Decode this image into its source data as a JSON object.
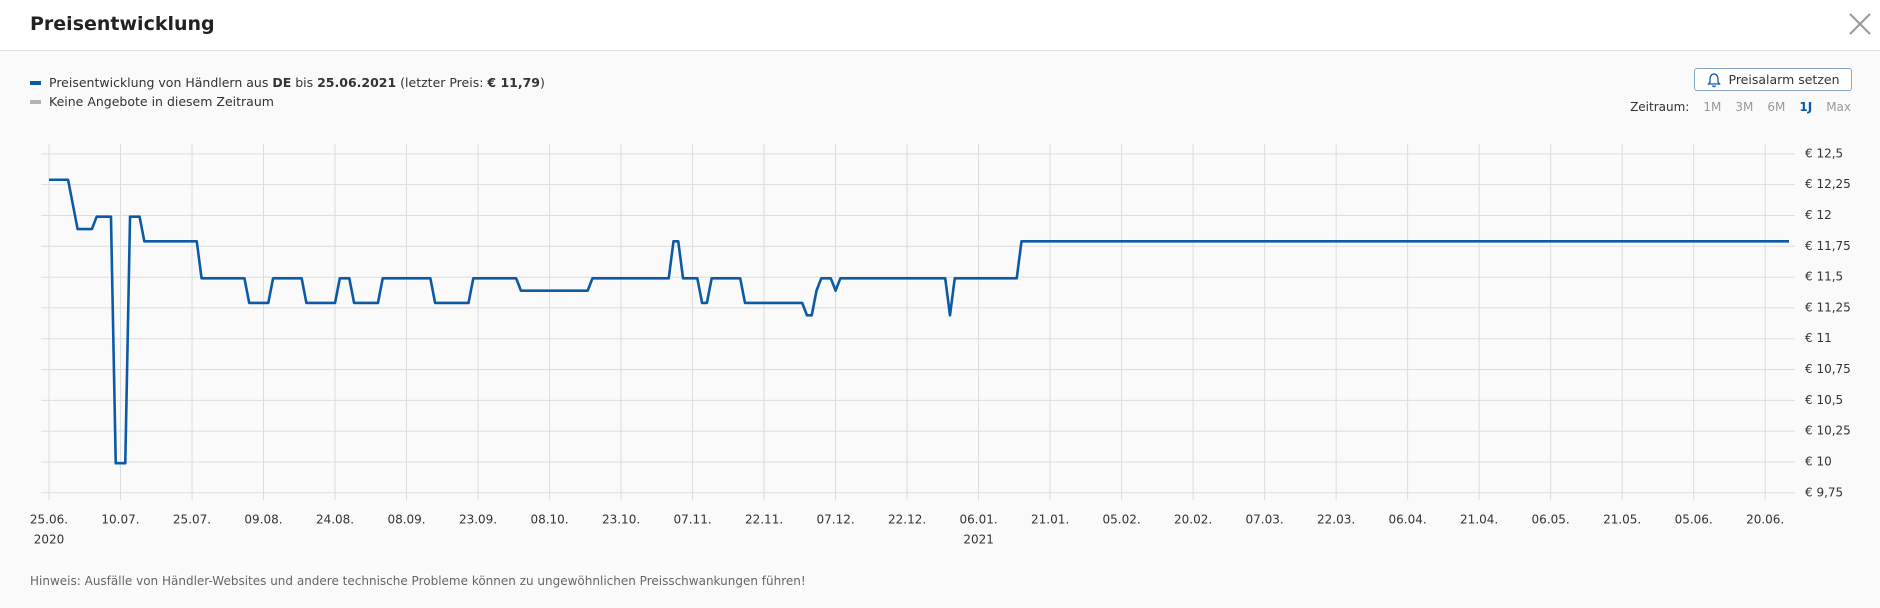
{
  "header": {
    "title": "Preisentwicklung"
  },
  "legend": [
    {
      "parts": [
        "Preisentwicklung von Händlern aus ",
        "DE",
        " bis ",
        "25.06.2021",
        " (letzter Preis: ",
        "€ 11,79",
        ")"
      ],
      "bold": [
        false,
        true,
        false,
        true,
        false,
        true,
        false
      ],
      "color": "#0c5aa6"
    },
    {
      "text": "Keine Angebote in diesem Zeitraum",
      "color": "#b3b3b3"
    }
  ],
  "alarm_button": {
    "label": "Preisalarm setzen"
  },
  "period": {
    "label": "Zeitraum:",
    "options": [
      "1M",
      "3M",
      "6M",
      "1J",
      "Max"
    ],
    "selected": 3
  },
  "chart_data": {
    "type": "line",
    "x": [
      "2020-06-25",
      "2020-06-29",
      "2020-07-01",
      "2020-07-04",
      "2020-07-05",
      "2020-07-08",
      "2020-07-09",
      "2020-07-11",
      "2020-07-12",
      "2020-07-14",
      "2020-07-15",
      "2020-07-26",
      "2020-07-27",
      "2020-08-05",
      "2020-08-06",
      "2020-08-10",
      "2020-08-11",
      "2020-08-17",
      "2020-08-18",
      "2020-08-24",
      "2020-08-25",
      "2020-08-27",
      "2020-08-28",
      "2020-09-02",
      "2020-09-03",
      "2020-09-13",
      "2020-09-14",
      "2020-09-21",
      "2020-09-22",
      "2020-10-01",
      "2020-10-02",
      "2020-10-16",
      "2020-10-17",
      "2020-11-02",
      "2020-11-03",
      "2020-11-04",
      "2020-11-05",
      "2020-11-08",
      "2020-11-09",
      "2020-11-10",
      "2020-11-11",
      "2020-11-17",
      "2020-11-18",
      "2020-11-30",
      "2020-12-01",
      "2020-12-02",
      "2020-12-03",
      "2020-12-04",
      "2020-12-06",
      "2020-12-07",
      "2020-12-08",
      "2020-12-30",
      "2020-12-31",
      "2021-01-01",
      "2021-01-14",
      "2021-01-15",
      "2021-06-25"
    ],
    "series": [
      {
        "color": "#0c5aa6",
        "values": [
          12.29,
          12.29,
          11.89,
          11.89,
          11.99,
          11.99,
          9.99,
          9.99,
          11.99,
          11.99,
          11.79,
          11.79,
          11.49,
          11.49,
          11.29,
          11.29,
          11.49,
          11.49,
          11.29,
          11.29,
          11.49,
          11.49,
          11.29,
          11.29,
          11.49,
          11.49,
          11.29,
          11.29,
          11.49,
          11.49,
          11.39,
          11.39,
          11.49,
          11.49,
          11.79,
          11.79,
          11.49,
          11.49,
          11.29,
          11.29,
          11.49,
          11.49,
          11.29,
          11.29,
          11.19,
          11.19,
          11.39,
          11.49,
          11.49,
          11.39,
          11.49,
          11.49,
          11.19,
          11.49,
          11.49,
          11.79,
          11.79
        ]
      }
    ],
    "xlim": [
      "2020-06-25",
      "2021-06-25"
    ],
    "ylim": [
      9.74,
      12.58
    ],
    "yticks": [
      {
        "value": 12.5,
        "label": "€ 12,5"
      },
      {
        "value": 12.25,
        "label": "€ 12,25"
      },
      {
        "value": 12,
        "label": "€ 12"
      },
      {
        "value": 11.75,
        "label": "€ 11,75"
      },
      {
        "value": 11.5,
        "label": "€ 11,5"
      },
      {
        "value": 11.25,
        "label": "€ 11,25"
      },
      {
        "value": 11,
        "label": "€ 11"
      },
      {
        "value": 10.75,
        "label": "€ 10,75"
      },
      {
        "value": 10.5,
        "label": "€ 10,5"
      },
      {
        "value": 10.25,
        "label": "€ 10,25"
      },
      {
        "value": 10,
        "label": "€ 10"
      },
      {
        "value": 9.75,
        "label": "€ 9,75"
      }
    ],
    "xticks": [
      {
        "value": "2020-06-25",
        "label": "25.06."
      },
      {
        "value": "2020-07-10",
        "label": "10.07."
      },
      {
        "value": "2020-07-25",
        "label": "25.07."
      },
      {
        "value": "2020-08-09",
        "label": "09.08."
      },
      {
        "value": "2020-08-24",
        "label": "24.08."
      },
      {
        "value": "2020-09-08",
        "label": "08.09."
      },
      {
        "value": "2020-09-23",
        "label": "23.09."
      },
      {
        "value": "2020-10-08",
        "label": "08.10."
      },
      {
        "value": "2020-10-23",
        "label": "23.10."
      },
      {
        "value": "2020-11-07",
        "label": "07.11."
      },
      {
        "value": "2020-11-22",
        "label": "22.11."
      },
      {
        "value": "2020-12-07",
        "label": "07.12."
      },
      {
        "value": "2020-12-22",
        "label": "22.12."
      },
      {
        "value": "2021-01-06",
        "label": "06.01."
      },
      {
        "value": "2021-01-21",
        "label": "21.01."
      },
      {
        "value": "2021-02-05",
        "label": "05.02."
      },
      {
        "value": "2021-02-20",
        "label": "20.02."
      },
      {
        "value": "2021-03-07",
        "label": "07.03."
      },
      {
        "value": "2021-03-22",
        "label": "22.03."
      },
      {
        "value": "2021-04-06",
        "label": "06.04."
      },
      {
        "value": "2021-04-21",
        "label": "21.04."
      },
      {
        "value": "2021-05-06",
        "label": "06.05."
      },
      {
        "value": "2021-05-21",
        "label": "21.05."
      },
      {
        "value": "2021-06-05",
        "label": "05.06."
      },
      {
        "value": "2021-06-20",
        "label": "20.06."
      }
    ],
    "xtick_years": [
      {
        "value": "2020-06-25",
        "label": "2020"
      },
      {
        "value": "2021-01-06",
        "label": "2021"
      }
    ],
    "grid": true
  },
  "note": "Hinweis: Ausfälle von Händler-Websites und andere technische Probleme können zu ungewöhnlichen Preisschwankungen führen!"
}
